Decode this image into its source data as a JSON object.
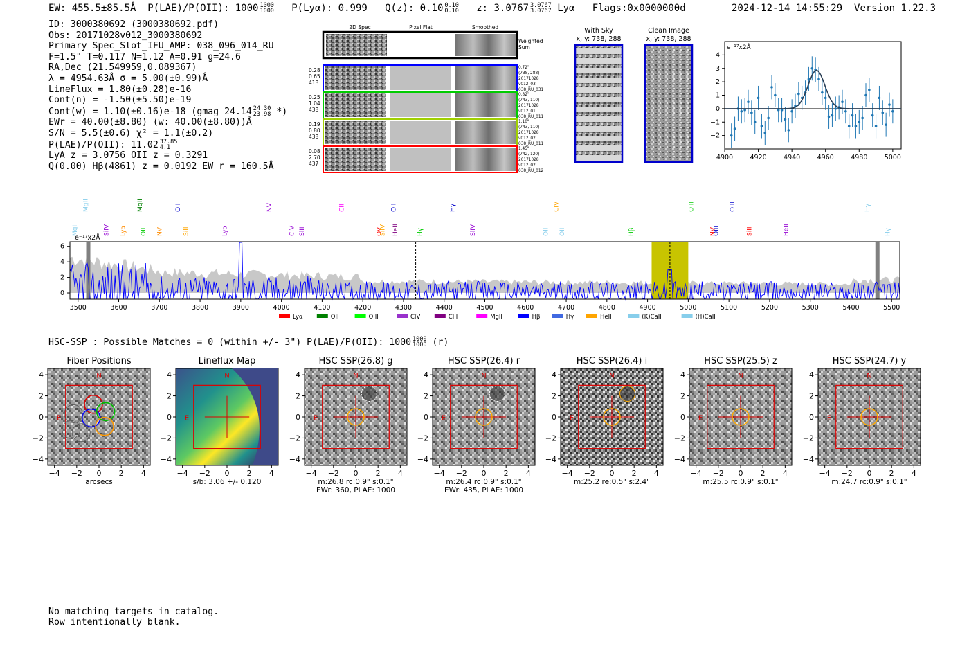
{
  "header": {
    "ew": "EW: 455.5±85.5Å",
    "plae_label": "P(LAE)/P(OII): 1000",
    "plae_hi": "1000",
    "plae_lo": "1000",
    "plya": "P(Lyα): 0.999",
    "qz_label": "Q(z): 0.10",
    "qz_hi": "0.10",
    "qz_lo": "0.10",
    "z_label": "z: 3.0767",
    "z_hi": "3.0767",
    "z_lo": "3.0767",
    "z_line": "Lyα",
    "flags": "Flags:0x0000000d",
    "datetime": "2024-12-14 14:55:29",
    "version": "Version 1.22.3"
  },
  "info": {
    "id": "ID: 3000380692 (3000380692.pdf)",
    "obs": "Obs: 20171028v012_3000380692",
    "primary": "Primary Spec_Slot_IFU_AMP: 038_096_014_RU",
    "f": "F=1.5\"  T=0.117  N=1.12  A=0.91  g=24.6",
    "radec": "RA,Dec (21.549959,0.089367)",
    "lambda": "λ = 4954.63Å   σ = 5.00(±0.99)Å",
    "lineflux": "LineFlux = 1.80(±0.28)e-16",
    "contn": "Cont(n) = -1.50(±5.50)e-19",
    "contw_main": "Cont(w) = 1.10(±0.16)e-18 (gmag 24.14",
    "contw_hi": "24.30",
    "contw_lo": "23.98",
    "contw_end": "*)",
    "ewr": "EWr = 40.00(±8.80) (w: 40.00(±8.80))Å",
    "sn": "S/N = 5.5(±0.6)   χ² = 1.1(±0.2)",
    "plae_main": "P(LAE)/P(OII): 11.02",
    "plae_hi": "37.85",
    "plae_lo": "4.1",
    "lya_z": "LyA z = 3.0756   OII z = 0.3291",
    "q": "Q(0.00) Hβ(4861) z = 0.0192  EW r = 160.5Å"
  },
  "cutouts": {
    "col_2d": "2D Spec",
    "col_flat": "Pixel Flat",
    "col_smooth": "Smoothed",
    "weighted": "Weighted",
    "sum": "Sum",
    "rows": [
      {
        "w1": "0.28",
        "w2": "0.65",
        "w3": "418",
        "info1": "0.72\"",
        "info2": "(738, 288)",
        "info3": "20171028",
        "info4": "v012_03",
        "info5": "038_RU_031",
        "color": "#0000ff"
      },
      {
        "w1": "0.25",
        "w2": "1.04",
        "w3": "438",
        "info1": "0.82\"",
        "info2": "(743, 110)",
        "info3": "20171028",
        "info4": "v012_01",
        "info5": "038_RU_011",
        "color": "#00cc00"
      },
      {
        "w1": "0.19",
        "w2": "0.80",
        "w3": "438",
        "info1": "1.10\"",
        "info2": "(743, 110)",
        "info3": "20171028",
        "info4": "v012_02",
        "info5": "038_RU_011",
        "color": "#a0d000"
      },
      {
        "w1": "0.08",
        "w2": "2.70",
        "w3": "437",
        "info1": "1.45\"",
        "info2": "(742, 120)",
        "info3": "20171028",
        "info4": "v012_02",
        "info5": "038_RU_012",
        "color": "#ff0000"
      }
    ],
    "with_sky": "With Sky",
    "with_sky_xy": "x, y: 738, 288",
    "clean": "Clean Image",
    "clean_xy": "x, y: 738, 288"
  },
  "zoom_chart": {
    "ylabel_unit": "e⁻¹⁷x2Å"
  },
  "spectrum_lines": [
    {
      "label": "MgII",
      "color": "#87ceeb",
      "x": 3492
    },
    {
      "label": "MgII",
      "color": "#87ceeb",
      "x": 3518
    },
    {
      "label": "SiIV",
      "color": "#9400d3",
      "x": 3569
    },
    {
      "label": "Lyα",
      "color": "#ff8c00",
      "x": 3610
    },
    {
      "label": "MgII",
      "color": "#008000",
      "x": 3652
    },
    {
      "label": "OII",
      "color": "#00cc00",
      "x": 3660
    },
    {
      "label": "NV",
      "color": "#ff8c00",
      "x": 3700
    },
    {
      "label": "OII",
      "color": "#0000cc",
      "x": 3745
    },
    {
      "label": "SiII",
      "color": "#ffa500",
      "x": 3765
    },
    {
      "label": "Lyα",
      "color": "#9400d3",
      "x": 3860
    },
    {
      "label": "NV",
      "color": "#9400d3",
      "x": 3970
    },
    {
      "label": "CIV",
      "color": "#9400d3",
      "x": 4025
    },
    {
      "label": "SiII",
      "color": "#9400d3",
      "x": 4050
    },
    {
      "label": "CII",
      "color": "#ff00ff",
      "x": 4148
    },
    {
      "label": "OVI",
      "color": "#ff0000",
      "x": 4240
    },
    {
      "label": "SiIV",
      "color": "#ffa500",
      "x": 4248
    },
    {
      "label": "OII",
      "color": "#0000cc",
      "x": 4275
    },
    {
      "label": "HeII",
      "color": "#800080",
      "x": 4280
    },
    {
      "label": "Hγ",
      "color": "#00cc00",
      "x": 4340
    },
    {
      "label": "Hγ",
      "color": "#0000cc",
      "x": 4420
    },
    {
      "label": "SiIV",
      "color": "#9400d3",
      "x": 4470
    },
    {
      "label": "OII",
      "color": "#87ceeb",
      "x": 4650
    },
    {
      "label": "CIV",
      "color": "#ffa500",
      "x": 4675
    },
    {
      "label": "OII",
      "color": "#87ceeb",
      "x": 4690
    },
    {
      "label": "Hβ",
      "color": "#00cc00",
      "x": 4860
    },
    {
      "label": "OIII",
      "color": "#00cc00",
      "x": 5007
    },
    {
      "label": "NV",
      "color": "#ff0000",
      "x": 5060
    },
    {
      "label": "OIII",
      "color": "#0000cc",
      "x": 5068
    },
    {
      "label": "OIII",
      "color": "#0000cc",
      "x": 5108
    },
    {
      "label": "SiII",
      "color": "#ff0000",
      "x": 5150
    },
    {
      "label": "HeII",
      "color": "#9400d3",
      "x": 5240
    },
    {
      "label": "Hγ",
      "color": "#87ceeb",
      "x": 5440
    },
    {
      "label": "Hγ",
      "color": "#87ceeb",
      "x": 5490
    }
  ],
  "legend": [
    {
      "label": "Lyα",
      "color": "#ff0000"
    },
    {
      "label": "OII",
      "color": "#008000"
    },
    {
      "label": "OIII",
      "color": "#00ff00"
    },
    {
      "label": "CIV",
      "color": "#9932cc"
    },
    {
      "label": "CIII",
      "color": "#800080"
    },
    {
      "label": "MgII",
      "color": "#ff00ff"
    },
    {
      "label": "Hβ",
      "color": "#0000ff"
    },
    {
      "label": "Hγ",
      "color": "#4169e1"
    },
    {
      "label": "HeII",
      "color": "#ffa500"
    },
    {
      "label": "(K)CaII",
      "color": "#87ceeb"
    },
    {
      "label": "(H)CaII",
      "color": "#87ceeb"
    }
  ],
  "spectrum_unit": "e⁻¹⁷x2Å",
  "hsc": {
    "title_main": "HSC-SSP : Possible Matches = 0 (within +/- 3\")  P(LAE)/P(OII): 1000",
    "title_hi": "1000",
    "title_lo": "1000",
    "title_end": "(r)"
  },
  "panels": [
    {
      "title": "Fiber Positions",
      "c1": "arcsecs",
      "c2": ""
    },
    {
      "title": "Lineflux Map",
      "c1": "s/b: 3.06 +/- 0.120",
      "c2": ""
    },
    {
      "title": "HSC SSP(26.8) g",
      "c1": "m:26.8 rc:0.9\"  s:0.1\"",
      "c2": "EWr: 360, PLAE: 1000"
    },
    {
      "title": "HSC SSP(26.4) r",
      "c1": "m:26.4 rc:0.9\"  s:0.1\"",
      "c2": "EWr: 435, PLAE: 1000"
    },
    {
      "title": "HSC SSP(26.4) i",
      "c1": "m:25.2  re:0.5\"  s:2.4\"",
      "c2": ""
    },
    {
      "title": "HSC SSP(25.5) z",
      "c1": "m:25.5 rc:0.9\"  s:0.1\"",
      "c2": ""
    },
    {
      "title": "HSC SSP(24.7) y",
      "c1": "m:24.7 rc:0.9\"  s:0.1\"",
      "c2": ""
    }
  ],
  "panel_marks": {
    "n": "N",
    "e": "E"
  },
  "footer": {
    "line1": "No matching targets in catalog.",
    "line2": "Row intentionally blank."
  },
  "chart_data": [
    {
      "type": "scatter",
      "title": "",
      "xlabel": "",
      "ylabel": "e⁻¹⁷x2Å",
      "xlim": [
        4900,
        5005
      ],
      "ylim": [
        -3,
        5
      ],
      "xticks": [
        "4900",
        "4920",
        "4940",
        "4960",
        "4980",
        "5000"
      ],
      "yticks": [
        "-2",
        "-1",
        "0",
        "1",
        "2",
        "3",
        "4"
      ],
      "x": [
        4904,
        4906,
        4908,
        4910,
        4912,
        4914,
        4916,
        4918,
        4920,
        4922,
        4924,
        4926,
        4928,
        4930,
        4932,
        4934,
        4936,
        4938,
        4940,
        4942,
        4944,
        4946,
        4948,
        4950,
        4952,
        4954,
        4956,
        4958,
        4960,
        4962,
        4964,
        4966,
        4968,
        4970,
        4972,
        4974,
        4976,
        4978,
        4980,
        4982,
        4984,
        4986,
        4988,
        4990,
        4992,
        4994,
        4996,
        4998,
        5000
      ],
      "y": [
        -2,
        -1.5,
        0,
        -0.2,
        -0.1,
        0.5,
        -0.3,
        -1.0,
        0.8,
        -1.3,
        -1.8,
        -0.7,
        1.6,
        1.0,
        -0.1,
        -0.1,
        -0.8,
        -1.6,
        -0.2,
        0.2,
        1.1,
        0.8,
        1.2,
        2.2,
        3.0,
        2.9,
        2.2,
        1.2,
        0.8,
        -0.6,
        -0.5,
        0,
        0.1,
        0.5,
        -0.2,
        -1.3,
        -0.5,
        -1.3,
        -1.0,
        -0.7,
        1.0,
        1.4,
        -0.5,
        -1.3,
        0.8,
        -0.3,
        -1.2,
        0.3,
        -0.2
      ],
      "err": [
        0.9,
        0.9,
        0.9,
        0.9,
        0.9,
        0.9,
        0.9,
        0.9,
        0.9,
        0.9,
        0.9,
        0.9,
        0.9,
        0.9,
        0.9,
        0.9,
        0.9,
        0.9,
        0.9,
        0.9,
        0.9,
        0.9,
        0.9,
        0.9,
        0.9,
        0.9,
        0.9,
        0.9,
        0.9,
        0.9,
        0.9,
        0.9,
        0.9,
        0.9,
        0.9,
        0.9,
        0.9,
        0.9,
        0.9,
        0.9,
        0.9,
        0.9,
        0.9,
        0.9,
        0.9,
        0.9,
        0.9,
        0.9,
        0.9
      ],
      "model": {
        "type": "gaussian",
        "center": 4954.63,
        "sigma": 5.0,
        "amplitude": 2.85,
        "baseline": 0
      }
    },
    {
      "type": "line",
      "title": "",
      "xlabel": "",
      "ylabel": "e⁻¹⁷x2Å",
      "xlim": [
        3480,
        5520
      ],
      "ylim": [
        -0.8,
        6.6
      ],
      "xticks": [
        "3500",
        "3600",
        "3700",
        "3800",
        "3900",
        "4000",
        "4100",
        "4200",
        "4300",
        "4400",
        "4500",
        "4600",
        "4700",
        "4800",
        "4900",
        "5000",
        "5100",
        "5200",
        "5300",
        "5400",
        "5500"
      ],
      "yticks": [
        "0",
        "2",
        "4",
        "6"
      ],
      "highlight_band": [
        4910,
        5000
      ],
      "gray_bars": [
        3520,
        5460
      ],
      "series": [
        {
          "name": "spectrum",
          "color": "#0000ff"
        },
        {
          "name": "error",
          "color": "#c0c0c0"
        }
      ]
    }
  ]
}
